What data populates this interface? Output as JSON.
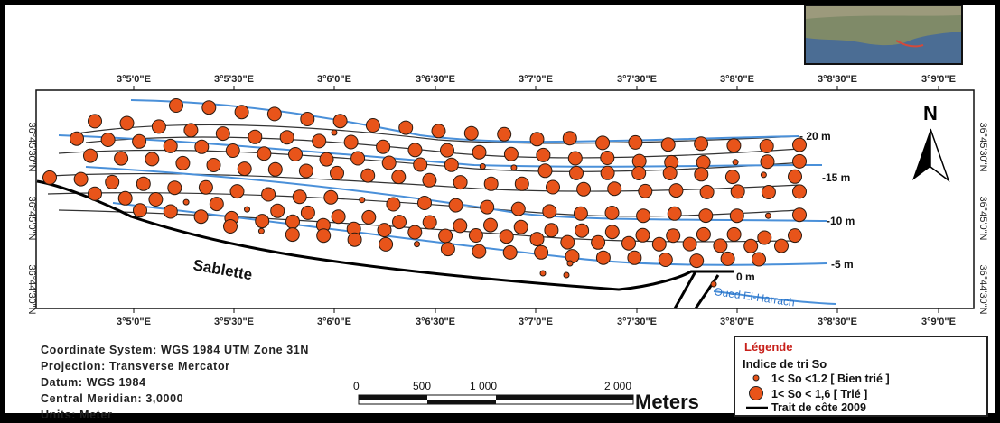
{
  "map": {
    "top_ticks": [
      "3°5'0\"E",
      "3°5'30\"E",
      "3°6'0\"E",
      "3°6'30\"E",
      "3°7'0\"E",
      "3°7'30\"E",
      "3°8'0\"E",
      "3°8'30\"E",
      "3°9'0\"E"
    ],
    "bottom_ticks": [
      "3°5'0\"E",
      "3°5'30\"E",
      "3°6'0\"E",
      "3°6'30\"E",
      "3°7'0\"E",
      "3°7'30\"E",
      "3°8'0\"E",
      "3°8'30\"E",
      "3°9'0\"E"
    ],
    "left_ticks": [
      "36°45'30\"N",
      "36°45'0\"N",
      "36°44'30\"N"
    ],
    "right_ticks": [
      "36°45'30\"N",
      "36°45'0\"N",
      "36°44'30\"N"
    ],
    "depth_labels": [
      "- 20  m",
      "-15 m",
      "-10 m",
      "-5 m",
      "0 m"
    ],
    "place_label": "Sablette",
    "river_label": "Oued El-Harrach",
    "north_label": "N",
    "colors": {
      "dot_fill": "#e8541a",
      "dot_stroke": "#222222",
      "contour": "#4a90d9",
      "coast": "#000000",
      "legend_title": "#c8201a"
    }
  },
  "metadata": {
    "coordinate_system": "Coordinate System: WGS 1984 UTM Zone 31N",
    "projection": "Projection: Transverse Mercator",
    "datum": "Datum: WGS 1984",
    "central_meridian": "Central Meridian: 3,0000",
    "units": "Units: Meter"
  },
  "scale_bar": {
    "ticks": [
      "0",
      "500",
      "1 000",
      "2 000"
    ],
    "unit": "Meters"
  },
  "legend": {
    "title": "Légende",
    "subtitle": "Indice de tri  So",
    "items": [
      "1< So <1.2 [ Bien trié ]",
      "1< So < 1,6  [ Trié ]",
      "Trait de côte 2009"
    ]
  }
}
